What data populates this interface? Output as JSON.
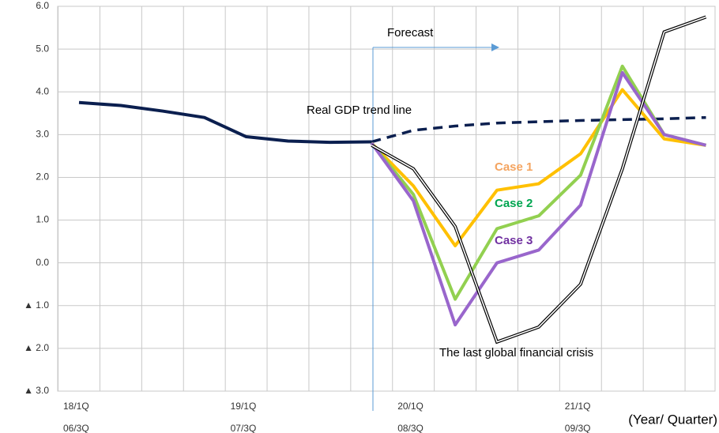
{
  "chart_data": {
    "type": "line",
    "annotation": "Forecast",
    "x_label": "(Year/ Quarter)",
    "categories": [
      "18/1Q",
      null,
      null,
      null,
      "19/1Q",
      null,
      null,
      null,
      "20/1Q",
      null,
      null,
      null,
      "21/1Q",
      null,
      null,
      null
    ],
    "secondary_categories": [
      "06/3Q",
      null,
      null,
      null,
      "07/3Q",
      null,
      null,
      null,
      "08/3Q",
      null,
      null,
      null,
      "09/3Q",
      null,
      null,
      null
    ],
    "ylim": [
      -3,
      6
    ],
    "yticks": [
      {
        "value": 6,
        "label": "6.0"
      },
      {
        "value": 5,
        "label": "5.0"
      },
      {
        "value": 4,
        "label": "4.0"
      },
      {
        "value": 3,
        "label": "3.0"
      },
      {
        "value": 2,
        "label": "2.0"
      },
      {
        "value": 1,
        "label": "1.0"
      },
      {
        "value": 0,
        "label": "0.0"
      },
      {
        "value": -1,
        "label": "▲ 1.0"
      },
      {
        "value": -2,
        "label": "▲ 2.0"
      },
      {
        "value": -3,
        "label": "▲ 3.0"
      }
    ],
    "grid": true,
    "series": [
      {
        "color": "#0b1f4f",
        "values": [
          3.75,
          3.68,
          3.55,
          3.4,
          2.95,
          2.85,
          2.82,
          2.83,
          null,
          null,
          null,
          null,
          null,
          null,
          null,
          null
        ]
      },
      {
        "name": "Real GDP trend line",
        "color": "#0b1f4f",
        "dashed": true,
        "label_color": "#000000",
        "values": [
          null,
          null,
          null,
          null,
          null,
          null,
          null,
          2.83,
          3.1,
          3.2,
          3.27,
          3.3,
          3.33,
          3.35,
          3.37,
          3.4
        ]
      },
      {
        "name": "Case 1",
        "color": "#ffc000",
        "label_color": "#f4a460",
        "values": [
          null,
          null,
          null,
          null,
          null,
          null,
          null,
          2.8,
          1.8,
          0.4,
          1.7,
          1.85,
          2.55,
          4.05,
          2.9,
          2.75
        ]
      },
      {
        "name": "Case 2",
        "color": "#92d050",
        "label_color": "#00a550",
        "values": [
          null,
          null,
          null,
          null,
          null,
          null,
          null,
          2.8,
          1.6,
          -0.85,
          0.8,
          1.1,
          2.05,
          4.6,
          3.0,
          2.75
        ]
      },
      {
        "name": "Case 3",
        "color": "#9966cc",
        "label_color": "#7030a0",
        "values": [
          null,
          null,
          null,
          null,
          null,
          null,
          null,
          2.8,
          1.45,
          -1.45,
          0.0,
          0.3,
          1.35,
          4.45,
          3.0,
          2.75
        ]
      },
      {
        "name": "The last global financial crisis",
        "color": "#000000",
        "outlined": true,
        "label_color": "#000000",
        "values": [
          null,
          null,
          null,
          null,
          null,
          null,
          null,
          2.75,
          2.2,
          0.85,
          -1.85,
          -1.5,
          -0.5,
          2.2,
          5.4,
          5.75
        ]
      }
    ]
  }
}
